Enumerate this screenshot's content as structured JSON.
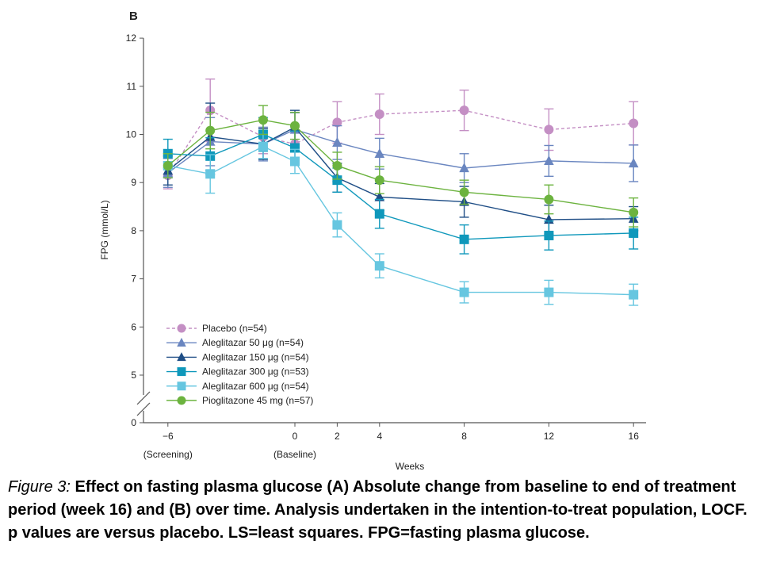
{
  "chart_data": {
    "type": "line",
    "panel_label": "B",
    "ylabel": "FPG (mmol/L)",
    "xlabel": "Weeks",
    "ylim": [
      0,
      12
    ],
    "y_ticks": [
      0,
      5,
      6,
      7,
      8,
      9,
      10,
      11,
      12
    ],
    "y_break": true,
    "x_ticks": [
      {
        "value": -6,
        "label": "−6",
        "sublabel": "(Screening)"
      },
      {
        "value": 0,
        "label": "0",
        "sublabel": "(Baseline)"
      },
      {
        "value": 2,
        "label": "2",
        "sublabel": ""
      },
      {
        "value": 4,
        "label": "4",
        "sublabel": ""
      },
      {
        "value": 8,
        "label": "8",
        "sublabel": ""
      },
      {
        "value": 12,
        "label": "12",
        "sublabel": ""
      },
      {
        "value": 16,
        "label": "16",
        "sublabel": ""
      }
    ],
    "grid": false,
    "legend_position": "bottom-left",
    "series": [
      {
        "name": "Placebo (n=54)",
        "color": "#c48fc4",
        "marker": "circle",
        "dashed": true,
        "x": [
          -6,
          -4,
          -1.5,
          0,
          2,
          4,
          8,
          12,
          16
        ],
        "y": [
          9.15,
          10.5,
          9.95,
          9.8,
          10.25,
          10.42,
          10.5,
          10.1,
          10.23
        ],
        "err": [
          0.28,
          0.65,
          0.35,
          0.35,
          0.43,
          0.42,
          0.42,
          0.43,
          0.45
        ]
      },
      {
        "name": "Aleglitazar 50 μg (n=54)",
        "color": "#6a86c0",
        "marker": "triangle",
        "dashed": false,
        "x": [
          -6,
          -4,
          -1.5,
          0,
          2,
          4,
          8,
          12,
          16
        ],
        "y": [
          9.2,
          9.85,
          9.8,
          10.1,
          9.83,
          9.6,
          9.3,
          9.45,
          9.4
        ],
        "err": [
          0.3,
          0.5,
          0.35,
          0.35,
          0.35,
          0.32,
          0.3,
          0.32,
          0.38
        ]
      },
      {
        "name": "Aleglitazar 150 μg (n=54)",
        "color": "#1f4e86",
        "marker": "triangle",
        "dashed": false,
        "x": [
          -6,
          -4,
          -1.5,
          0,
          2,
          4,
          8,
          12,
          16
        ],
        "y": [
          9.25,
          9.95,
          9.8,
          10.15,
          9.1,
          8.7,
          8.6,
          8.23,
          8.25
        ],
        "err": [
          0.3,
          0.7,
          0.32,
          0.35,
          0.3,
          0.28,
          0.32,
          0.3,
          0.25
        ]
      },
      {
        "name": "Aleglitazar 300 μg (n=53)",
        "color": "#0f98bb",
        "marker": "square",
        "dashed": false,
        "x": [
          -6,
          -4,
          -1.5,
          0,
          2,
          4,
          8,
          12,
          16
        ],
        "y": [
          9.6,
          9.55,
          10.0,
          9.72,
          9.05,
          8.35,
          7.82,
          7.9,
          7.95
        ],
        "err": [
          0.3,
          0.38,
          0.35,
          0.35,
          0.25,
          0.3,
          0.3,
          0.3,
          0.33
        ]
      },
      {
        "name": "Aleglitazar 600 μg (n=54)",
        "color": "#66c6e0",
        "marker": "square",
        "dashed": false,
        "x": [
          -6,
          -4,
          -1.5,
          0,
          2,
          4,
          8,
          12,
          16
        ],
        "y": [
          9.35,
          9.18,
          9.75,
          9.44,
          8.12,
          7.27,
          6.72,
          6.72,
          6.67
        ],
        "err": [
          0.25,
          0.4,
          0.25,
          0.25,
          0.25,
          0.25,
          0.22,
          0.25,
          0.22
        ]
      },
      {
        "name": "Pioglitazone 45 mg (n=57)",
        "color": "#6cb33f",
        "marker": "circle",
        "dashed": false,
        "x": [
          -6,
          -4,
          -1.5,
          0,
          2,
          4,
          8,
          12,
          16
        ],
        "y": [
          9.35,
          10.08,
          10.3,
          10.18,
          9.35,
          9.05,
          8.8,
          8.65,
          8.38
        ],
        "err": [
          0.25,
          0.38,
          0.3,
          0.28,
          0.28,
          0.28,
          0.25,
          0.3,
          0.3
        ]
      }
    ]
  },
  "caption": {
    "lead": "Figure 3:",
    "text": " Effect on fasting plasma glucose (A) Absolute change from baseline to end of treatment period (week 16) and (B) over time. Analysis undertaken in the intention-to-treat population, LOCF. p values are versus placebo. LS=least squares. FPG=fasting plasma glucose."
  }
}
